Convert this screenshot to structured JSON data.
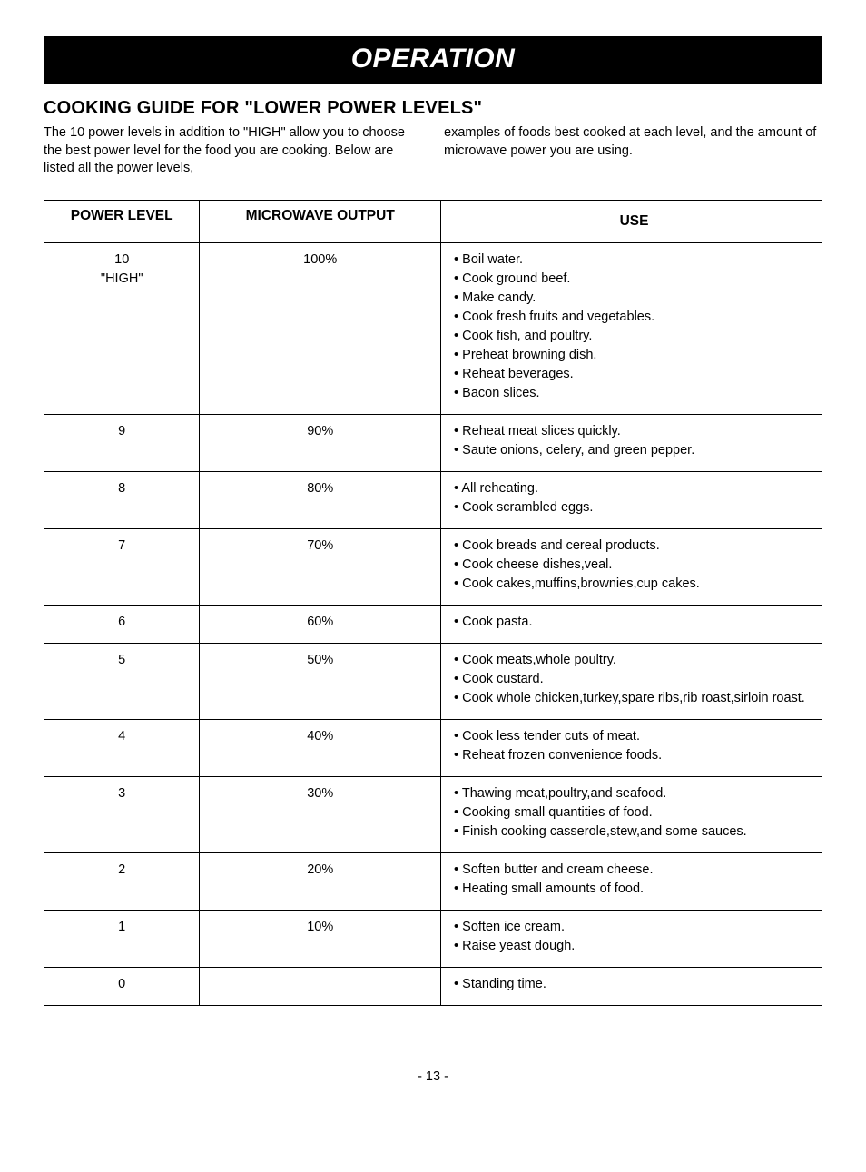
{
  "banner": {
    "title": "OPERATION"
  },
  "section": {
    "title": "COOKING GUIDE FOR \"LOWER POWER LEVELS\""
  },
  "intro": {
    "left": "The 10 power levels in addition to \"HIGH\" allow you to choose the best power level for the food you are cooking. Below are listed all the power levels,",
    "right": "examples of foods best cooked at each level, and the amount of microwave power you are using."
  },
  "table": {
    "headers": {
      "level": "POWER LEVEL",
      "output": "MICROWAVE OUTPUT",
      "use": "USE"
    },
    "rows": [
      {
        "level": "10\n\"HIGH\"",
        "output": "100%",
        "uses": [
          "Boil water.",
          "Cook ground beef.",
          "Make candy.",
          "Cook fresh fruits and vegetables.",
          "Cook fish, and poultry.",
          "Preheat browning dish.",
          "Reheat beverages.",
          "Bacon slices."
        ]
      },
      {
        "level": "9",
        "output": "90%",
        "uses": [
          "Reheat meat slices quickly.",
          "Saute onions, celery, and green pepper."
        ]
      },
      {
        "level": "8",
        "output": "80%",
        "uses": [
          "All reheating.",
          "Cook scrambled eggs."
        ]
      },
      {
        "level": "7",
        "output": "70%",
        "uses": [
          "Cook  breads and cereal products.",
          "Cook cheese dishes,veal.",
          "Cook cakes,muffins,brownies,cup cakes."
        ]
      },
      {
        "level": "6",
        "output": "60%",
        "uses": [
          "Cook pasta."
        ]
      },
      {
        "level": "5",
        "output": "50%",
        "uses": [
          "Cook meats,whole poultry.",
          "Cook custard.",
          "Cook whole chicken,turkey,spare ribs,rib roast,sirloin roast."
        ]
      },
      {
        "level": "4",
        "output": "40%",
        "uses": [
          "Cook less tender cuts of meat.",
          "Reheat frozen convenience foods."
        ]
      },
      {
        "level": "3",
        "output": "30%",
        "uses": [
          "Thawing meat,poultry,and seafood.",
          "Cooking small quantities of food.",
          "Finish cooking casserole,stew,and some sauces."
        ]
      },
      {
        "level": "2",
        "output": "20%",
        "uses": [
          "Soften butter and cream cheese.",
          "Heating small amounts of food."
        ]
      },
      {
        "level": "1",
        "output": "10%",
        "uses": [
          "Soften ice cream.",
          "Raise  yeast dough."
        ]
      },
      {
        "level": "0",
        "output": "",
        "uses": [
          "Standing time."
        ]
      }
    ]
  },
  "page": {
    "number": "- 13 -"
  },
  "style": {
    "banner_bg": "#000000",
    "banner_fg": "#ffffff",
    "body_bg": "#ffffff",
    "body_fg": "#000000",
    "border_color": "#000000"
  }
}
